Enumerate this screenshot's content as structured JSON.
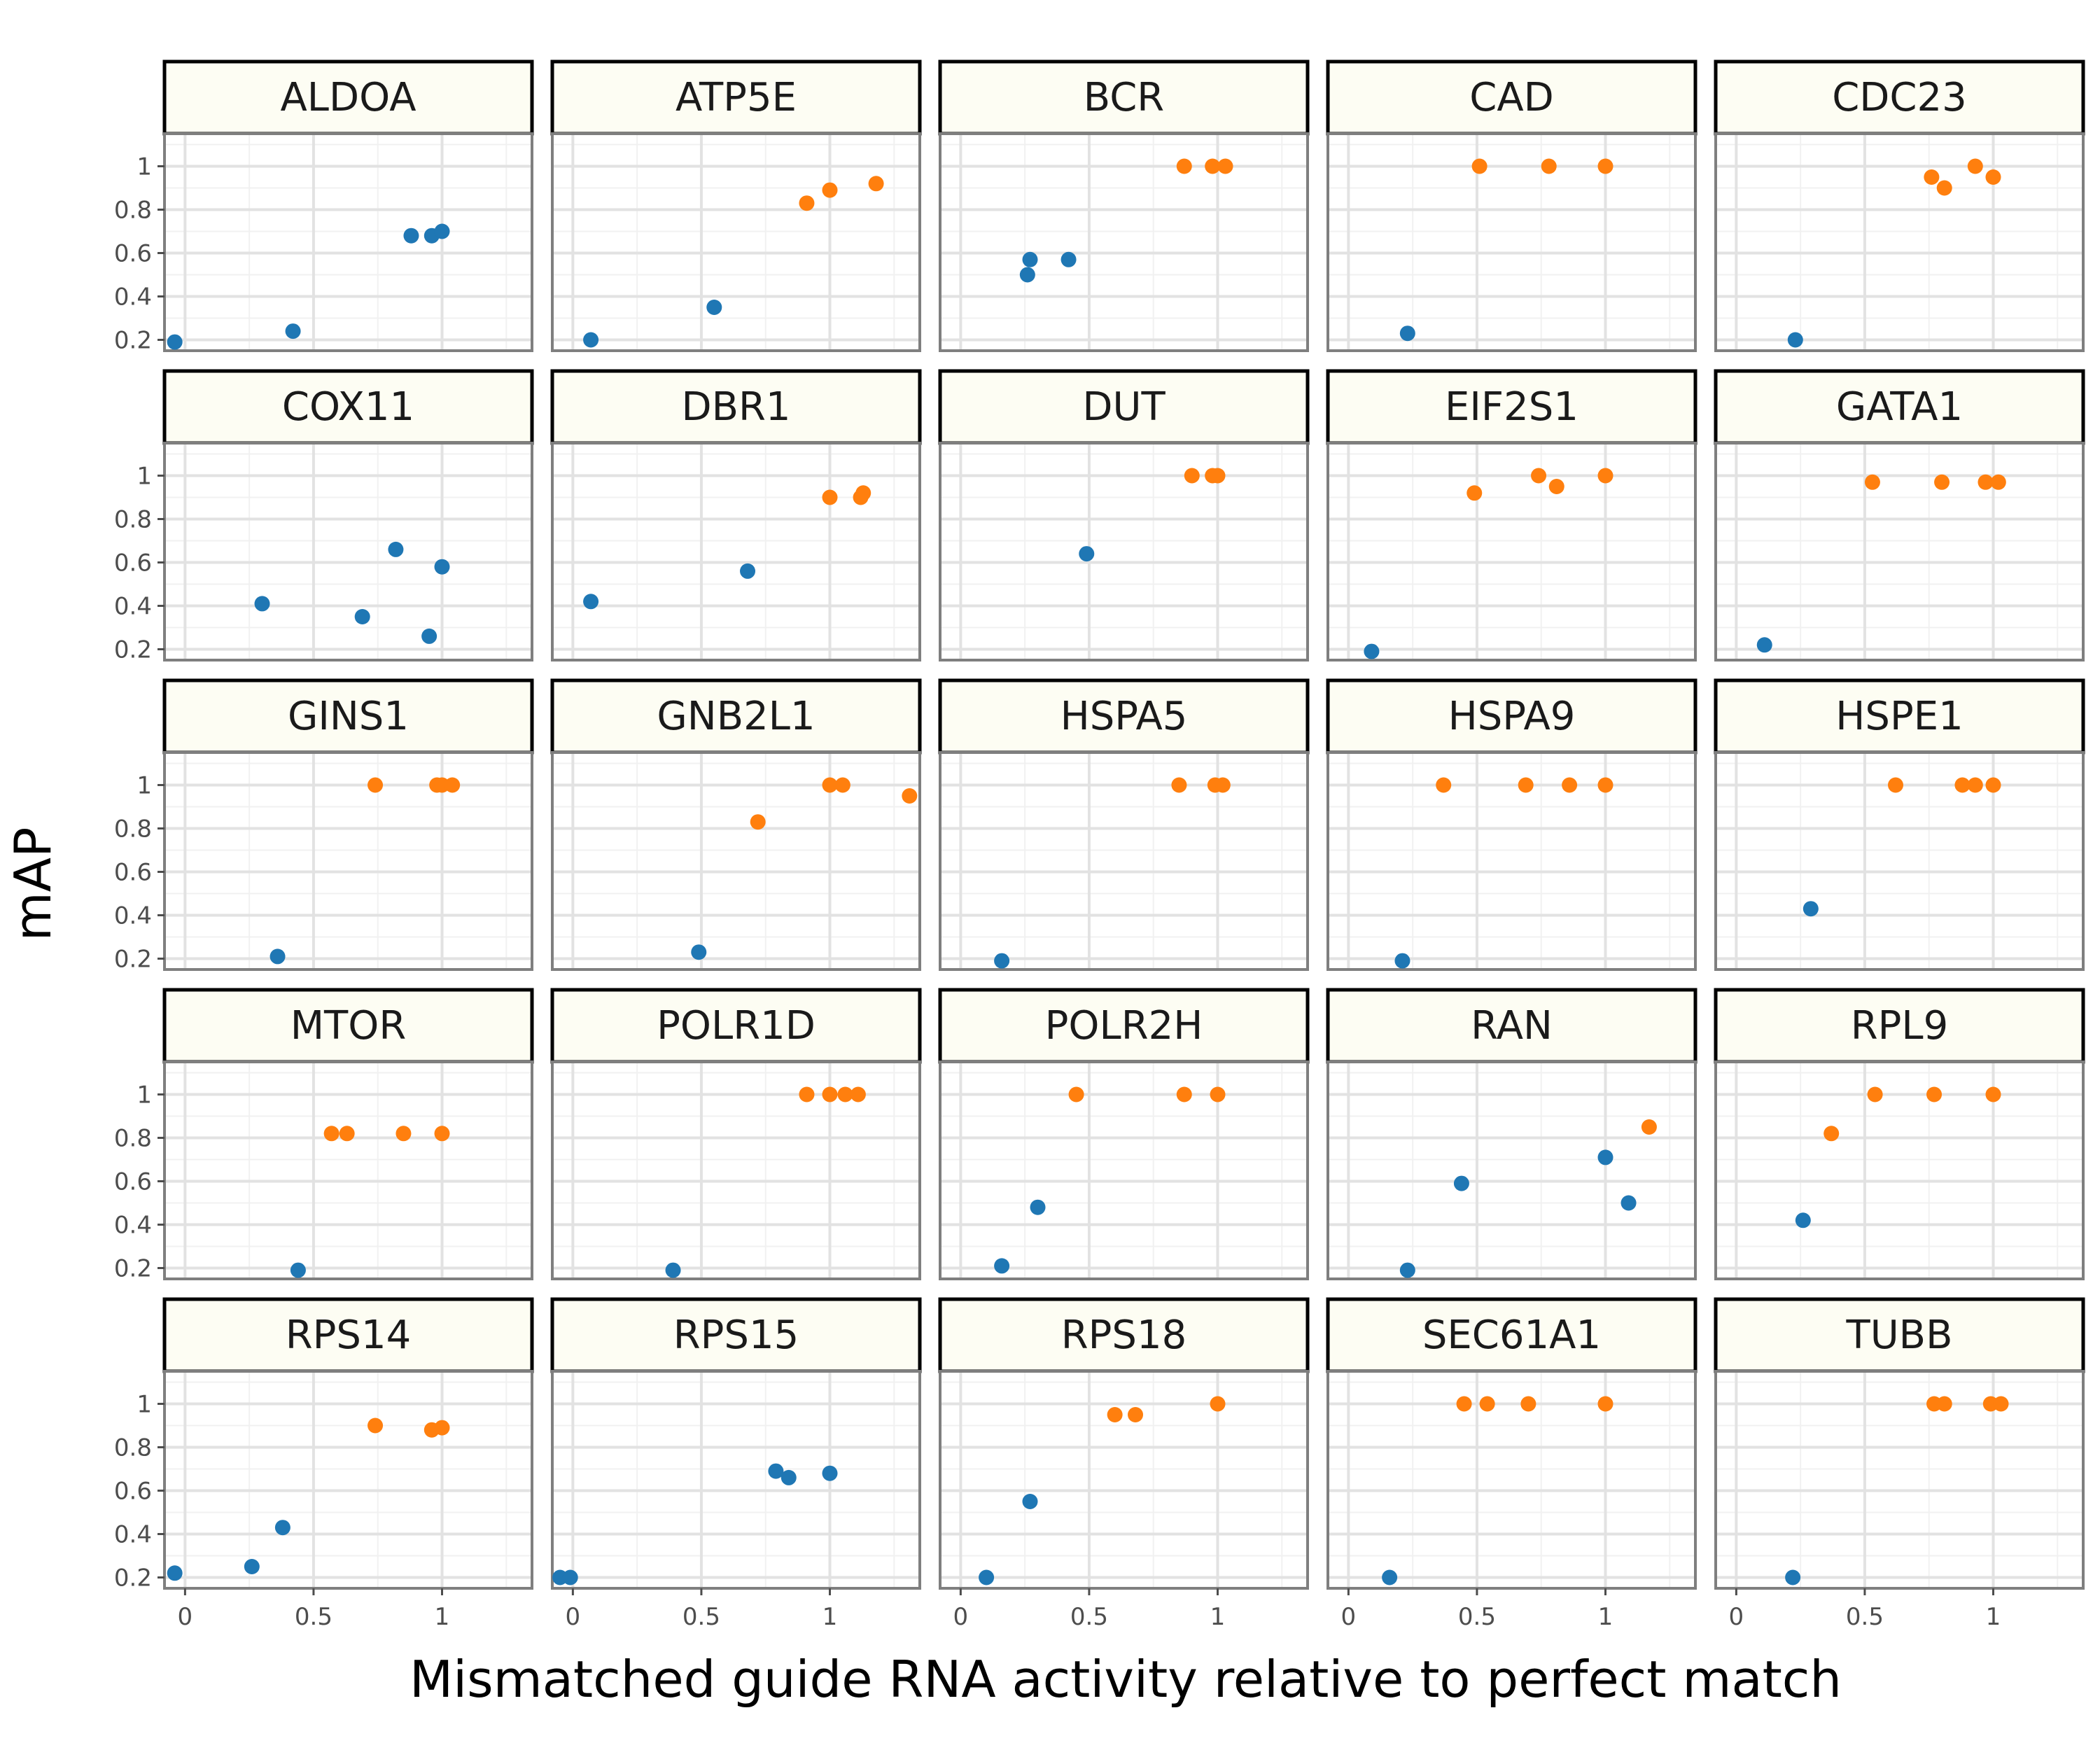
{
  "colors": {
    "blue": "#1f77b4",
    "orange": "#ff7f0e",
    "strip_fill": "#fdfdf3"
  },
  "chart_data": {
    "type": "scatter",
    "title": "",
    "xlabel": "Mismatched guide RNA activity relative to perfect match",
    "ylabel": "mAP",
    "xlim": [
      -0.08,
      1.35
    ],
    "ylim": [
      0.15,
      1.15
    ],
    "x_ticks": [
      0,
      0.5,
      1
    ],
    "x_tick_labels": [
      "0",
      "0.5",
      "1"
    ],
    "y_ticks": [
      0.2,
      0.4,
      0.6,
      0.8,
      1
    ],
    "y_tick_labels": [
      "0.2",
      "0.4",
      "0.6",
      "0.8",
      "1"
    ],
    "grid": true,
    "legend": "none",
    "layout": "facet_wrap 5 columns x 5 rows",
    "panels": [
      {
        "name": "ALDOA",
        "blue": [
          [
            -0.04,
            0.19
          ],
          [
            0.42,
            0.24
          ],
          [
            0.88,
            0.68
          ],
          [
            0.96,
            0.68
          ],
          [
            1.0,
            0.7
          ]
        ],
        "orange": []
      },
      {
        "name": "ATP5E",
        "blue": [
          [
            0.07,
            0.2
          ],
          [
            0.55,
            0.35
          ]
        ],
        "orange": [
          [
            0.91,
            0.83
          ],
          [
            1.0,
            0.89
          ],
          [
            1.18,
            0.92
          ]
        ]
      },
      {
        "name": "BCR",
        "blue": [
          [
            0.26,
            0.5
          ],
          [
            0.27,
            0.57
          ],
          [
            0.42,
            0.57
          ]
        ],
        "orange": [
          [
            0.87,
            1.0
          ],
          [
            0.98,
            1.0
          ],
          [
            1.03,
            1.0
          ]
        ]
      },
      {
        "name": "CAD",
        "blue": [
          [
            0.23,
            0.23
          ]
        ],
        "orange": [
          [
            0.51,
            1.0
          ],
          [
            0.78,
            1.0
          ],
          [
            1.0,
            1.0
          ]
        ]
      },
      {
        "name": "CDC23",
        "blue": [
          [
            0.23,
            0.2
          ]
        ],
        "orange": [
          [
            0.76,
            0.95
          ],
          [
            0.81,
            0.9
          ],
          [
            0.93,
            1.0
          ],
          [
            1.0,
            0.95
          ]
        ]
      },
      {
        "name": "COX11",
        "blue": [
          [
            0.3,
            0.41
          ],
          [
            0.69,
            0.35
          ],
          [
            0.82,
            0.66
          ],
          [
            0.95,
            0.26
          ],
          [
            1.0,
            0.58
          ]
        ],
        "orange": []
      },
      {
        "name": "DBR1",
        "blue": [
          [
            0.07,
            0.42
          ],
          [
            0.68,
            0.56
          ]
        ],
        "orange": [
          [
            1.0,
            0.9
          ],
          [
            1.12,
            0.9
          ],
          [
            1.13,
            0.92
          ]
        ]
      },
      {
        "name": "DUT",
        "blue": [
          [
            0.49,
            0.64
          ]
        ],
        "orange": [
          [
            0.9,
            1.0
          ],
          [
            0.98,
            1.0
          ],
          [
            1.0,
            1.0
          ]
        ]
      },
      {
        "name": "EIF2S1",
        "blue": [
          [
            0.09,
            0.19
          ]
        ],
        "orange": [
          [
            0.49,
            0.92
          ],
          [
            0.74,
            1.0
          ],
          [
            0.81,
            0.95
          ],
          [
            1.0,
            1.0
          ]
        ]
      },
      {
        "name": "GATA1",
        "blue": [
          [
            0.11,
            0.22
          ]
        ],
        "orange": [
          [
            0.53,
            0.97
          ],
          [
            0.8,
            0.97
          ],
          [
            0.97,
            0.97
          ],
          [
            1.02,
            0.97
          ]
        ]
      },
      {
        "name": "GINS1",
        "blue": [
          [
            0.36,
            0.21
          ]
        ],
        "orange": [
          [
            0.74,
            1.0
          ],
          [
            0.98,
            1.0
          ],
          [
            1.0,
            1.0
          ],
          [
            1.04,
            1.0
          ]
        ]
      },
      {
        "name": "GNB2L1",
        "blue": [
          [
            0.49,
            0.23
          ]
        ],
        "orange": [
          [
            0.72,
            0.83
          ],
          [
            1.0,
            1.0
          ],
          [
            1.05,
            1.0
          ],
          [
            1.31,
            0.95
          ]
        ]
      },
      {
        "name": "HSPA5",
        "blue": [
          [
            0.16,
            0.19
          ]
        ],
        "orange": [
          [
            0.85,
            1.0
          ],
          [
            0.99,
            1.0
          ],
          [
            1.02,
            1.0
          ]
        ]
      },
      {
        "name": "HSPA9",
        "blue": [
          [
            0.21,
            0.19
          ]
        ],
        "orange": [
          [
            0.37,
            1.0
          ],
          [
            0.69,
            1.0
          ],
          [
            0.86,
            1.0
          ],
          [
            1.0,
            1.0
          ]
        ]
      },
      {
        "name": "HSPE1",
        "blue": [
          [
            0.29,
            0.43
          ]
        ],
        "orange": [
          [
            0.62,
            1.0
          ],
          [
            0.88,
            1.0
          ],
          [
            0.93,
            1.0
          ],
          [
            1.0,
            1.0
          ]
        ]
      },
      {
        "name": "MTOR",
        "blue": [
          [
            0.44,
            0.19
          ]
        ],
        "orange": [
          [
            0.57,
            0.82
          ],
          [
            0.63,
            0.82
          ],
          [
            0.85,
            0.82
          ],
          [
            1.0,
            0.82
          ]
        ]
      },
      {
        "name": "POLR1D",
        "blue": [
          [
            0.39,
            0.19
          ]
        ],
        "orange": [
          [
            0.91,
            1.0
          ],
          [
            1.0,
            1.0
          ],
          [
            1.06,
            1.0
          ],
          [
            1.11,
            1.0
          ]
        ]
      },
      {
        "name": "POLR2H",
        "blue": [
          [
            0.16,
            0.21
          ],
          [
            0.3,
            0.48
          ]
        ],
        "orange": [
          [
            0.45,
            1.0
          ],
          [
            0.87,
            1.0
          ],
          [
            1.0,
            1.0
          ]
        ]
      },
      {
        "name": "RAN",
        "blue": [
          [
            0.23,
            0.19
          ],
          [
            0.44,
            0.59
          ],
          [
            1.0,
            0.71
          ],
          [
            1.09,
            0.5
          ]
        ],
        "orange": [
          [
            1.17,
            0.85
          ]
        ]
      },
      {
        "name": "RPL9",
        "blue": [
          [
            0.26,
            0.42
          ]
        ],
        "orange": [
          [
            0.37,
            0.82
          ],
          [
            0.54,
            1.0
          ],
          [
            0.77,
            1.0
          ],
          [
            1.0,
            1.0
          ]
        ]
      },
      {
        "name": "RPS14",
        "blue": [
          [
            -0.04,
            0.22
          ],
          [
            0.26,
            0.25
          ],
          [
            0.38,
            0.43
          ]
        ],
        "orange": [
          [
            0.74,
            0.9
          ],
          [
            0.96,
            0.88
          ],
          [
            1.0,
            0.89
          ]
        ]
      },
      {
        "name": "RPS15",
        "blue": [
          [
            -0.05,
            0.2
          ],
          [
            -0.01,
            0.2
          ],
          [
            0.79,
            0.69
          ],
          [
            0.84,
            0.66
          ],
          [
            1.0,
            0.68
          ]
        ],
        "orange": []
      },
      {
        "name": "RPS18",
        "blue": [
          [
            0.1,
            0.2
          ],
          [
            0.27,
            0.55
          ]
        ],
        "orange": [
          [
            0.6,
            0.95
          ],
          [
            0.68,
            0.95
          ],
          [
            1.0,
            1.0
          ]
        ]
      },
      {
        "name": "SEC61A1",
        "blue": [
          [
            0.16,
            0.2
          ]
        ],
        "orange": [
          [
            0.45,
            1.0
          ],
          [
            0.54,
            1.0
          ],
          [
            0.7,
            1.0
          ],
          [
            1.0,
            1.0
          ]
        ]
      },
      {
        "name": "TUBB",
        "blue": [
          [
            0.22,
            0.2
          ]
        ],
        "orange": [
          [
            0.77,
            1.0
          ],
          [
            0.81,
            1.0
          ],
          [
            0.99,
            1.0
          ],
          [
            1.03,
            1.0
          ]
        ]
      }
    ]
  }
}
